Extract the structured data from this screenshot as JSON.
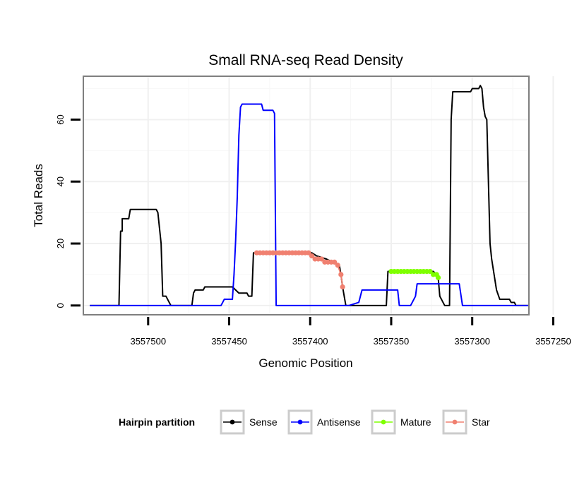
{
  "chart_data": {
    "type": "line",
    "title": "Small RNA-seq Read Density",
    "xlabel": "Genomic Position",
    "ylabel": "Total Reads",
    "xlim": [
      3557265,
      3557540
    ],
    "x_reversed": true,
    "ylim": [
      -3,
      74
    ],
    "x_ticks": [
      3557500,
      3557450,
      3557400,
      3557350,
      3557300,
      3557250
    ],
    "x_tick_labels": [
      "3557500",
      "3557450",
      "3557400",
      "3557350",
      "3557300",
      "3557250"
    ],
    "y_ticks": [
      0,
      20,
      40,
      60
    ],
    "y_tick_labels": [
      "0",
      "20",
      "40",
      "60"
    ],
    "grid": true,
    "legend": {
      "title": "Hairpin partition",
      "position": "bottom",
      "entries": [
        "Sense",
        "Antisense",
        "Mature",
        "Star"
      ]
    },
    "series": [
      {
        "name": "Sense",
        "color": "#000000",
        "markers": false,
        "points": [
          [
            3557536,
            0
          ],
          [
            3557518,
            0
          ],
          [
            3557517,
            24
          ],
          [
            3557516,
            24
          ],
          [
            3557516,
            28
          ],
          [
            3557512,
            28
          ],
          [
            3557511,
            31
          ],
          [
            3557495,
            31
          ],
          [
            3557494,
            30
          ],
          [
            3557492,
            20
          ],
          [
            3557491,
            3
          ],
          [
            3557489,
            3
          ],
          [
            3557487,
            1
          ],
          [
            3557486,
            0
          ],
          [
            3557473,
            0
          ],
          [
            3557472,
            4
          ],
          [
            3557471,
            5
          ],
          [
            3557466,
            5
          ],
          [
            3557465,
            6
          ],
          [
            3557448,
            6
          ],
          [
            3557446,
            5
          ],
          [
            3557444,
            4
          ],
          [
            3557439,
            4
          ],
          [
            3557438,
            3
          ],
          [
            3557436,
            3
          ],
          [
            3557435,
            17
          ],
          [
            3557434,
            17
          ],
          [
            3557399,
            17
          ],
          [
            3557396,
            16
          ],
          [
            3557390,
            15
          ],
          [
            3557386,
            14
          ],
          [
            3557382,
            13
          ],
          [
            3557381,
            10
          ],
          [
            3557380,
            6
          ],
          [
            3557378,
            0
          ],
          [
            3557353,
            0
          ],
          [
            3557352,
            11
          ],
          [
            3557324,
            11
          ],
          [
            3557322,
            10
          ],
          [
            3557321,
            9
          ],
          [
            3557320,
            3
          ],
          [
            3557318,
            1
          ],
          [
            3557317,
            0
          ],
          [
            3557314,
            0
          ],
          [
            3557313,
            60
          ],
          [
            3557312,
            69
          ],
          [
            3557301,
            69
          ],
          [
            3557300,
            70
          ],
          [
            3557296,
            70
          ],
          [
            3557295,
            71
          ],
          [
            3557294,
            70
          ],
          [
            3557293,
            64
          ],
          [
            3557292,
            61
          ],
          [
            3557291,
            60
          ],
          [
            3557290,
            40
          ],
          [
            3557289,
            20
          ],
          [
            3557288,
            15
          ],
          [
            3557285,
            5
          ],
          [
            3557283,
            2
          ],
          [
            3557277,
            2
          ],
          [
            3557276,
            1
          ],
          [
            3557274,
            1
          ],
          [
            3557273,
            0
          ],
          [
            3557244,
            0
          ]
        ]
      },
      {
        "name": "Antisense",
        "color": "#0000ff",
        "markers": false,
        "points": [
          [
            3557536,
            0
          ],
          [
            3557455,
            0
          ],
          [
            3557453,
            2
          ],
          [
            3557448,
            2
          ],
          [
            3557447,
            10
          ],
          [
            3557446,
            21
          ],
          [
            3557445,
            35
          ],
          [
            3557444,
            55
          ],
          [
            3557443,
            64
          ],
          [
            3557442,
            65
          ],
          [
            3557430,
            65
          ],
          [
            3557429,
            63
          ],
          [
            3557423,
            63
          ],
          [
            3557422,
            62
          ],
          [
            3557421,
            0
          ],
          [
            3557386,
            0
          ],
          [
            3557381,
            0
          ],
          [
            3557376,
            0
          ],
          [
            3557370,
            1
          ],
          [
            3557368,
            5
          ],
          [
            3557366,
            5
          ],
          [
            3557346,
            5
          ],
          [
            3557345,
            0
          ],
          [
            3557338,
            0
          ],
          [
            3557335,
            3
          ],
          [
            3557334,
            7
          ],
          [
            3557332,
            7
          ],
          [
            3557308,
            7
          ],
          [
            3557306,
            0
          ],
          [
            3557275,
            0
          ],
          [
            3557244,
            0
          ]
        ]
      },
      {
        "name": "Mature",
        "color": "#7fff00",
        "markers": true,
        "points": [
          [
            3557350,
            11
          ],
          [
            3557348,
            11
          ],
          [
            3557346,
            11
          ],
          [
            3557344,
            11
          ],
          [
            3557342,
            11
          ],
          [
            3557340,
            11
          ],
          [
            3557338,
            11
          ],
          [
            3557336,
            11
          ],
          [
            3557334,
            11
          ],
          [
            3557332,
            11
          ],
          [
            3557330,
            11
          ],
          [
            3557328,
            11
          ],
          [
            3557326,
            11
          ],
          [
            3557324,
            10
          ],
          [
            3557322,
            10
          ],
          [
            3557321,
            9
          ]
        ]
      },
      {
        "name": "Star",
        "color": "#f08070",
        "markers": true,
        "points": [
          [
            3557433,
            17
          ],
          [
            3557431,
            17
          ],
          [
            3557429,
            17
          ],
          [
            3557427,
            17
          ],
          [
            3557425,
            17
          ],
          [
            3557423,
            17
          ],
          [
            3557421,
            17
          ],
          [
            3557419,
            17
          ],
          [
            3557417,
            17
          ],
          [
            3557415,
            17
          ],
          [
            3557413,
            17
          ],
          [
            3557411,
            17
          ],
          [
            3557409,
            17
          ],
          [
            3557407,
            17
          ],
          [
            3557405,
            17
          ],
          [
            3557403,
            17
          ],
          [
            3557401,
            17
          ],
          [
            3557399,
            16
          ],
          [
            3557397,
            15
          ],
          [
            3557395,
            15
          ],
          [
            3557393,
            15
          ],
          [
            3557391,
            14
          ],
          [
            3557389,
            14
          ],
          [
            3557387,
            14
          ],
          [
            3557385,
            14
          ],
          [
            3557383,
            13
          ],
          [
            3557381,
            10
          ],
          [
            3557380,
            6
          ]
        ]
      }
    ]
  }
}
